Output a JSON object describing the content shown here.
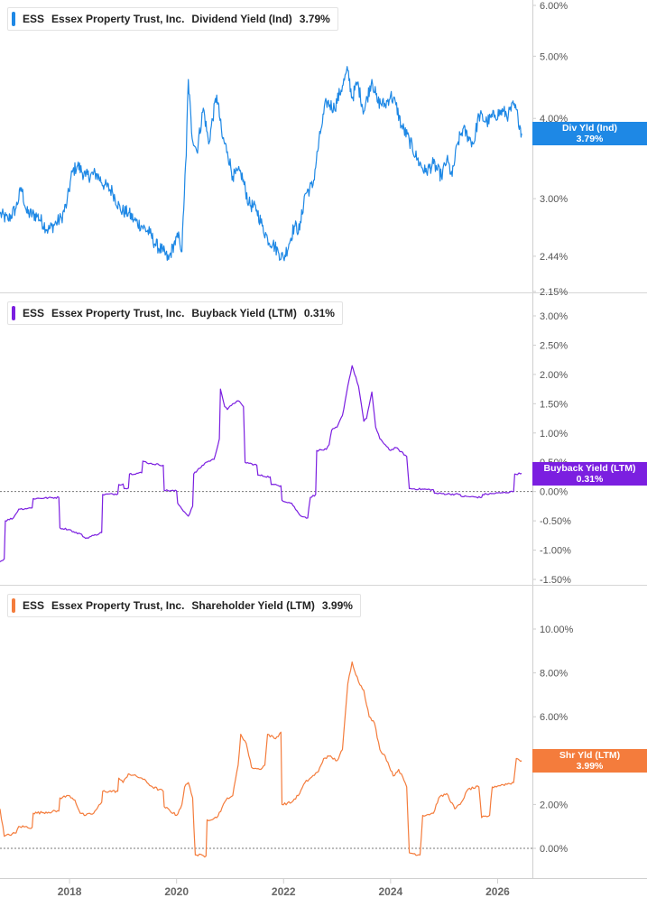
{
  "chart_data": [
    {
      "type": "line",
      "ticker": "ESS",
      "company": "Essex Property Trust, Inc.",
      "metric": "Dividend Yield (Ind)",
      "current_value": "3.79%",
      "tag_label": "Div Yld (Ind)",
      "color": "#1e88e5",
      "scale": "log",
      "y_ticks": [
        2.15,
        2.44,
        3.0,
        4.0,
        5.0,
        6.0
      ],
      "y_tick_labels": [
        "2.15%",
        "2.44%",
        "3.00%",
        "4.00%",
        "5.00%",
        "6.00%"
      ],
      "ylim": [
        2.15,
        6.0
      ],
      "zero_line": false,
      "points": [
        [
          2016.7,
          2.84
        ],
        [
          2016.85,
          2.78
        ],
        [
          2017.0,
          2.9
        ],
        [
          2017.1,
          3.12
        ],
        [
          2017.2,
          2.85
        ],
        [
          2017.4,
          2.82
        ],
        [
          2017.6,
          2.68
        ],
        [
          2017.75,
          2.75
        ],
        [
          2017.85,
          2.8
        ],
        [
          2017.95,
          2.95
        ],
        [
          2018.05,
          3.3
        ],
        [
          2018.15,
          3.38
        ],
        [
          2018.3,
          3.25
        ],
        [
          2018.5,
          3.28
        ],
        [
          2018.65,
          3.15
        ],
        [
          2018.8,
          3.08
        ],
        [
          2018.95,
          2.88
        ],
        [
          2019.1,
          2.85
        ],
        [
          2019.2,
          2.78
        ],
        [
          2019.35,
          2.72
        ],
        [
          2019.5,
          2.65
        ],
        [
          2019.6,
          2.55
        ],
        [
          2019.75,
          2.48
        ],
        [
          2019.85,
          2.41
        ],
        [
          2019.95,
          2.55
        ],
        [
          2020.05,
          2.62
        ],
        [
          2020.1,
          2.48
        ],
        [
          2020.18,
          3.5
        ],
        [
          2020.22,
          4.6
        ],
        [
          2020.28,
          3.8
        ],
        [
          2020.38,
          3.55
        ],
        [
          2020.5,
          4.15
        ],
        [
          2020.6,
          3.65
        ],
        [
          2020.75,
          4.35
        ],
        [
          2020.85,
          3.75
        ],
        [
          2020.95,
          3.55
        ],
        [
          2021.05,
          3.25
        ],
        [
          2021.2,
          3.3
        ],
        [
          2021.35,
          2.95
        ],
        [
          2021.5,
          2.88
        ],
        [
          2021.6,
          2.72
        ],
        [
          2021.7,
          2.6
        ],
        [
          2021.8,
          2.55
        ],
        [
          2021.9,
          2.48
        ],
        [
          2022.0,
          2.42
        ],
        [
          2022.1,
          2.55
        ],
        [
          2022.2,
          2.72
        ],
        [
          2022.3,
          2.68
        ],
        [
          2022.4,
          3.05
        ],
        [
          2022.55,
          3.15
        ],
        [
          2022.7,
          3.85
        ],
        [
          2022.8,
          4.25
        ],
        [
          2022.95,
          4.15
        ],
        [
          2023.1,
          4.5
        ],
        [
          2023.2,
          4.75
        ],
        [
          2023.28,
          4.3
        ],
        [
          2023.38,
          4.55
        ],
        [
          2023.5,
          4.1
        ],
        [
          2023.65,
          4.6
        ],
        [
          2023.75,
          4.25
        ],
        [
          2023.9,
          4.2
        ],
        [
          2024.0,
          4.35
        ],
        [
          2024.1,
          4.2
        ],
        [
          2024.2,
          3.9
        ],
        [
          2024.35,
          3.7
        ],
        [
          2024.5,
          3.45
        ],
        [
          2024.65,
          3.3
        ],
        [
          2024.8,
          3.4
        ],
        [
          2024.95,
          3.25
        ],
        [
          2025.05,
          3.45
        ],
        [
          2025.15,
          3.25
        ],
        [
          2025.25,
          3.65
        ],
        [
          2025.35,
          3.85
        ],
        [
          2025.45,
          3.75
        ],
        [
          2025.55,
          3.65
        ],
        [
          2025.65,
          4.05
        ],
        [
          2025.8,
          3.95
        ],
        [
          2025.95,
          4.05
        ],
        [
          2026.1,
          4.1
        ],
        [
          2026.2,
          4.05
        ],
        [
          2026.3,
          4.2
        ],
        [
          2026.38,
          4.02
        ],
        [
          2026.45,
          3.79
        ]
      ]
    },
    {
      "type": "line",
      "ticker": "ESS",
      "company": "Essex Property Trust, Inc.",
      "metric": "Buyback Yield (LTM)",
      "current_value": "0.31%",
      "tag_label": "Buyback Yield (LTM)",
      "color": "#7b1fe0",
      "scale": "linear",
      "y_ticks": [
        -1.5,
        -1.0,
        -0.5,
        0.0,
        0.5,
        1.0,
        1.5,
        2.0,
        2.5,
        3.0
      ],
      "y_tick_labels": [
        "-1.50%",
        "-1.00%",
        "-0.50%",
        "0.00%",
        "0.50%",
        "1.00%",
        "1.50%",
        "2.00%",
        "2.50%",
        "3.00%"
      ],
      "ylim": [
        -1.5,
        3.0
      ],
      "zero_line": true,
      "points": [
        [
          2016.7,
          -1.2
        ],
        [
          2016.78,
          -1.15
        ],
        [
          2016.8,
          -0.5
        ],
        [
          2016.95,
          -0.45
        ],
        [
          2017.05,
          -0.3
        ],
        [
          2017.3,
          -0.28
        ],
        [
          2017.32,
          -0.12
        ],
        [
          2017.8,
          -0.1
        ],
        [
          2017.82,
          -0.62
        ],
        [
          2018.0,
          -0.65
        ],
        [
          2018.1,
          -0.7
        ],
        [
          2018.2,
          -0.72
        ],
        [
          2018.3,
          -0.8
        ],
        [
          2018.45,
          -0.75
        ],
        [
          2018.6,
          -0.7
        ],
        [
          2018.62,
          -0.05
        ],
        [
          2018.9,
          -0.04
        ],
        [
          2018.92,
          0.12
        ],
        [
          2019.0,
          0.13
        ],
        [
          2019.02,
          0.05
        ],
        [
          2019.1,
          0.06
        ],
        [
          2019.12,
          0.3
        ],
        [
          2019.35,
          0.32
        ],
        [
          2019.37,
          0.52
        ],
        [
          2019.5,
          0.48
        ],
        [
          2019.75,
          0.45
        ],
        [
          2019.77,
          0.02
        ],
        [
          2020.0,
          0.01
        ],
        [
          2020.02,
          -0.2
        ],
        [
          2020.15,
          -0.35
        ],
        [
          2020.22,
          -0.42
        ],
        [
          2020.3,
          -0.25
        ],
        [
          2020.32,
          0.3
        ],
        [
          2020.55,
          0.5
        ],
        [
          2020.7,
          0.55
        ],
        [
          2020.8,
          0.9
        ],
        [
          2020.82,
          1.75
        ],
        [
          2020.9,
          1.45
        ],
        [
          2020.95,
          1.4
        ],
        [
          2021.05,
          1.5
        ],
        [
          2021.15,
          1.55
        ],
        [
          2021.25,
          1.45
        ],
        [
          2021.28,
          0.5
        ],
        [
          2021.5,
          0.45
        ],
        [
          2021.52,
          0.28
        ],
        [
          2021.75,
          0.25
        ],
        [
          2021.77,
          0.12
        ],
        [
          2021.95,
          0.1
        ],
        [
          2021.97,
          -0.15
        ],
        [
          2022.15,
          -0.2
        ],
        [
          2022.3,
          -0.4
        ],
        [
          2022.45,
          -0.45
        ],
        [
          2022.5,
          -0.1
        ],
        [
          2022.6,
          -0.05
        ],
        [
          2022.62,
          0.7
        ],
        [
          2022.8,
          0.72
        ],
        [
          2022.85,
          0.8
        ],
        [
          2022.9,
          1.05
        ],
        [
          2023.0,
          1.1
        ],
        [
          2023.1,
          1.3
        ],
        [
          2023.2,
          1.8
        ],
        [
          2023.28,
          2.15
        ],
        [
          2023.4,
          1.8
        ],
        [
          2023.5,
          1.2
        ],
        [
          2023.55,
          1.25
        ],
        [
          2023.65,
          1.7
        ],
        [
          2023.72,
          1.1
        ],
        [
          2023.8,
          0.9
        ],
        [
          2023.9,
          0.8
        ],
        [
          2024.0,
          0.7
        ],
        [
          2024.1,
          0.75
        ],
        [
          2024.3,
          0.6
        ],
        [
          2024.35,
          0.05
        ],
        [
          2024.8,
          0.03
        ],
        [
          2024.82,
          -0.03
        ],
        [
          2025.3,
          -0.05
        ],
        [
          2025.32,
          -0.08
        ],
        [
          2025.7,
          -0.1
        ],
        [
          2025.72,
          -0.05
        ],
        [
          2026.1,
          -0.02
        ],
        [
          2026.3,
          0.0
        ],
        [
          2026.32,
          0.3
        ],
        [
          2026.45,
          0.31
        ]
      ]
    },
    {
      "type": "line",
      "ticker": "ESS",
      "company": "Essex Property Trust, Inc.",
      "metric": "Shareholder Yield (LTM)",
      "current_value": "3.99%",
      "tag_label": "Shr Yld (LTM)",
      "color": "#f47c3c",
      "scale": "linear",
      "y_ticks": [
        0.0,
        2.0,
        4.0,
        6.0,
        8.0,
        10.0
      ],
      "y_tick_labels": [
        "0.00%",
        "2.00%",
        "4.00%",
        "6.00%",
        "8.00%",
        "10.00%"
      ],
      "ylim": [
        -0.8,
        10.2
      ],
      "zero_line": true,
      "points": [
        [
          2016.7,
          1.8
        ],
        [
          2016.78,
          0.55
        ],
        [
          2017.0,
          0.7
        ],
        [
          2017.05,
          1.0
        ],
        [
          2017.3,
          0.95
        ],
        [
          2017.32,
          1.6
        ],
        [
          2017.8,
          1.7
        ],
        [
          2017.82,
          2.3
        ],
        [
          2018.0,
          2.4
        ],
        [
          2018.1,
          2.2
        ],
        [
          2018.2,
          1.6
        ],
        [
          2018.3,
          1.5
        ],
        [
          2018.45,
          1.6
        ],
        [
          2018.6,
          2.1
        ],
        [
          2018.62,
          2.6
        ],
        [
          2018.9,
          2.6
        ],
        [
          2018.92,
          3.2
        ],
        [
          2019.0,
          3.0
        ],
        [
          2019.1,
          3.4
        ],
        [
          2019.35,
          3.2
        ],
        [
          2019.55,
          2.8
        ],
        [
          2019.75,
          2.6
        ],
        [
          2019.77,
          1.9
        ],
        [
          2020.0,
          1.5
        ],
        [
          2020.1,
          2.0
        ],
        [
          2020.15,
          2.8
        ],
        [
          2020.22,
          3.0
        ],
        [
          2020.3,
          2.3
        ],
        [
          2020.35,
          -0.3
        ],
        [
          2020.55,
          -0.35
        ],
        [
          2020.57,
          1.3
        ],
        [
          2020.75,
          1.4
        ],
        [
          2020.95,
          2.3
        ],
        [
          2021.05,
          2.4
        ],
        [
          2021.15,
          3.8
        ],
        [
          2021.2,
          5.2
        ],
        [
          2021.3,
          4.8
        ],
        [
          2021.4,
          3.7
        ],
        [
          2021.55,
          3.6
        ],
        [
          2021.65,
          3.8
        ],
        [
          2021.7,
          5.2
        ],
        [
          2021.85,
          5.0
        ],
        [
          2021.95,
          5.3
        ],
        [
          2021.97,
          2.0
        ],
        [
          2022.15,
          2.1
        ],
        [
          2022.3,
          2.5
        ],
        [
          2022.4,
          3.0
        ],
        [
          2022.5,
          3.2
        ],
        [
          2022.65,
          3.5
        ],
        [
          2022.75,
          4.1
        ],
        [
          2022.85,
          4.2
        ],
        [
          2023.0,
          4.0
        ],
        [
          2023.1,
          4.5
        ],
        [
          2023.2,
          7.5
        ],
        [
          2023.28,
          8.5
        ],
        [
          2023.4,
          7.6
        ],
        [
          2023.5,
          7.2
        ],
        [
          2023.6,
          6.0
        ],
        [
          2023.7,
          5.7
        ],
        [
          2023.8,
          4.5
        ],
        [
          2023.9,
          4.2
        ],
        [
          2024.05,
          3.3
        ],
        [
          2024.15,
          3.6
        ],
        [
          2024.25,
          3.1
        ],
        [
          2024.3,
          2.8
        ],
        [
          2024.35,
          -0.2
        ],
        [
          2024.55,
          -0.3
        ],
        [
          2024.6,
          1.5
        ],
        [
          2024.8,
          1.6
        ],
        [
          2024.9,
          2.3
        ],
        [
          2025.05,
          2.5
        ],
        [
          2025.2,
          1.8
        ],
        [
          2025.3,
          2.0
        ],
        [
          2025.45,
          2.7
        ],
        [
          2025.65,
          2.8
        ],
        [
          2025.7,
          1.4
        ],
        [
          2025.85,
          1.5
        ],
        [
          2025.9,
          2.8
        ],
        [
          2026.1,
          2.9
        ],
        [
          2026.3,
          3.0
        ],
        [
          2026.35,
          4.1
        ],
        [
          2026.45,
          3.99
        ]
      ]
    }
  ],
  "x_axis": {
    "xlim": [
      2016.7,
      2026.65
    ],
    "ticks": [
      2018,
      2020,
      2022,
      2024,
      2026
    ],
    "tick_labels": [
      "2018",
      "2020",
      "2022",
      "2024",
      "2026"
    ]
  }
}
